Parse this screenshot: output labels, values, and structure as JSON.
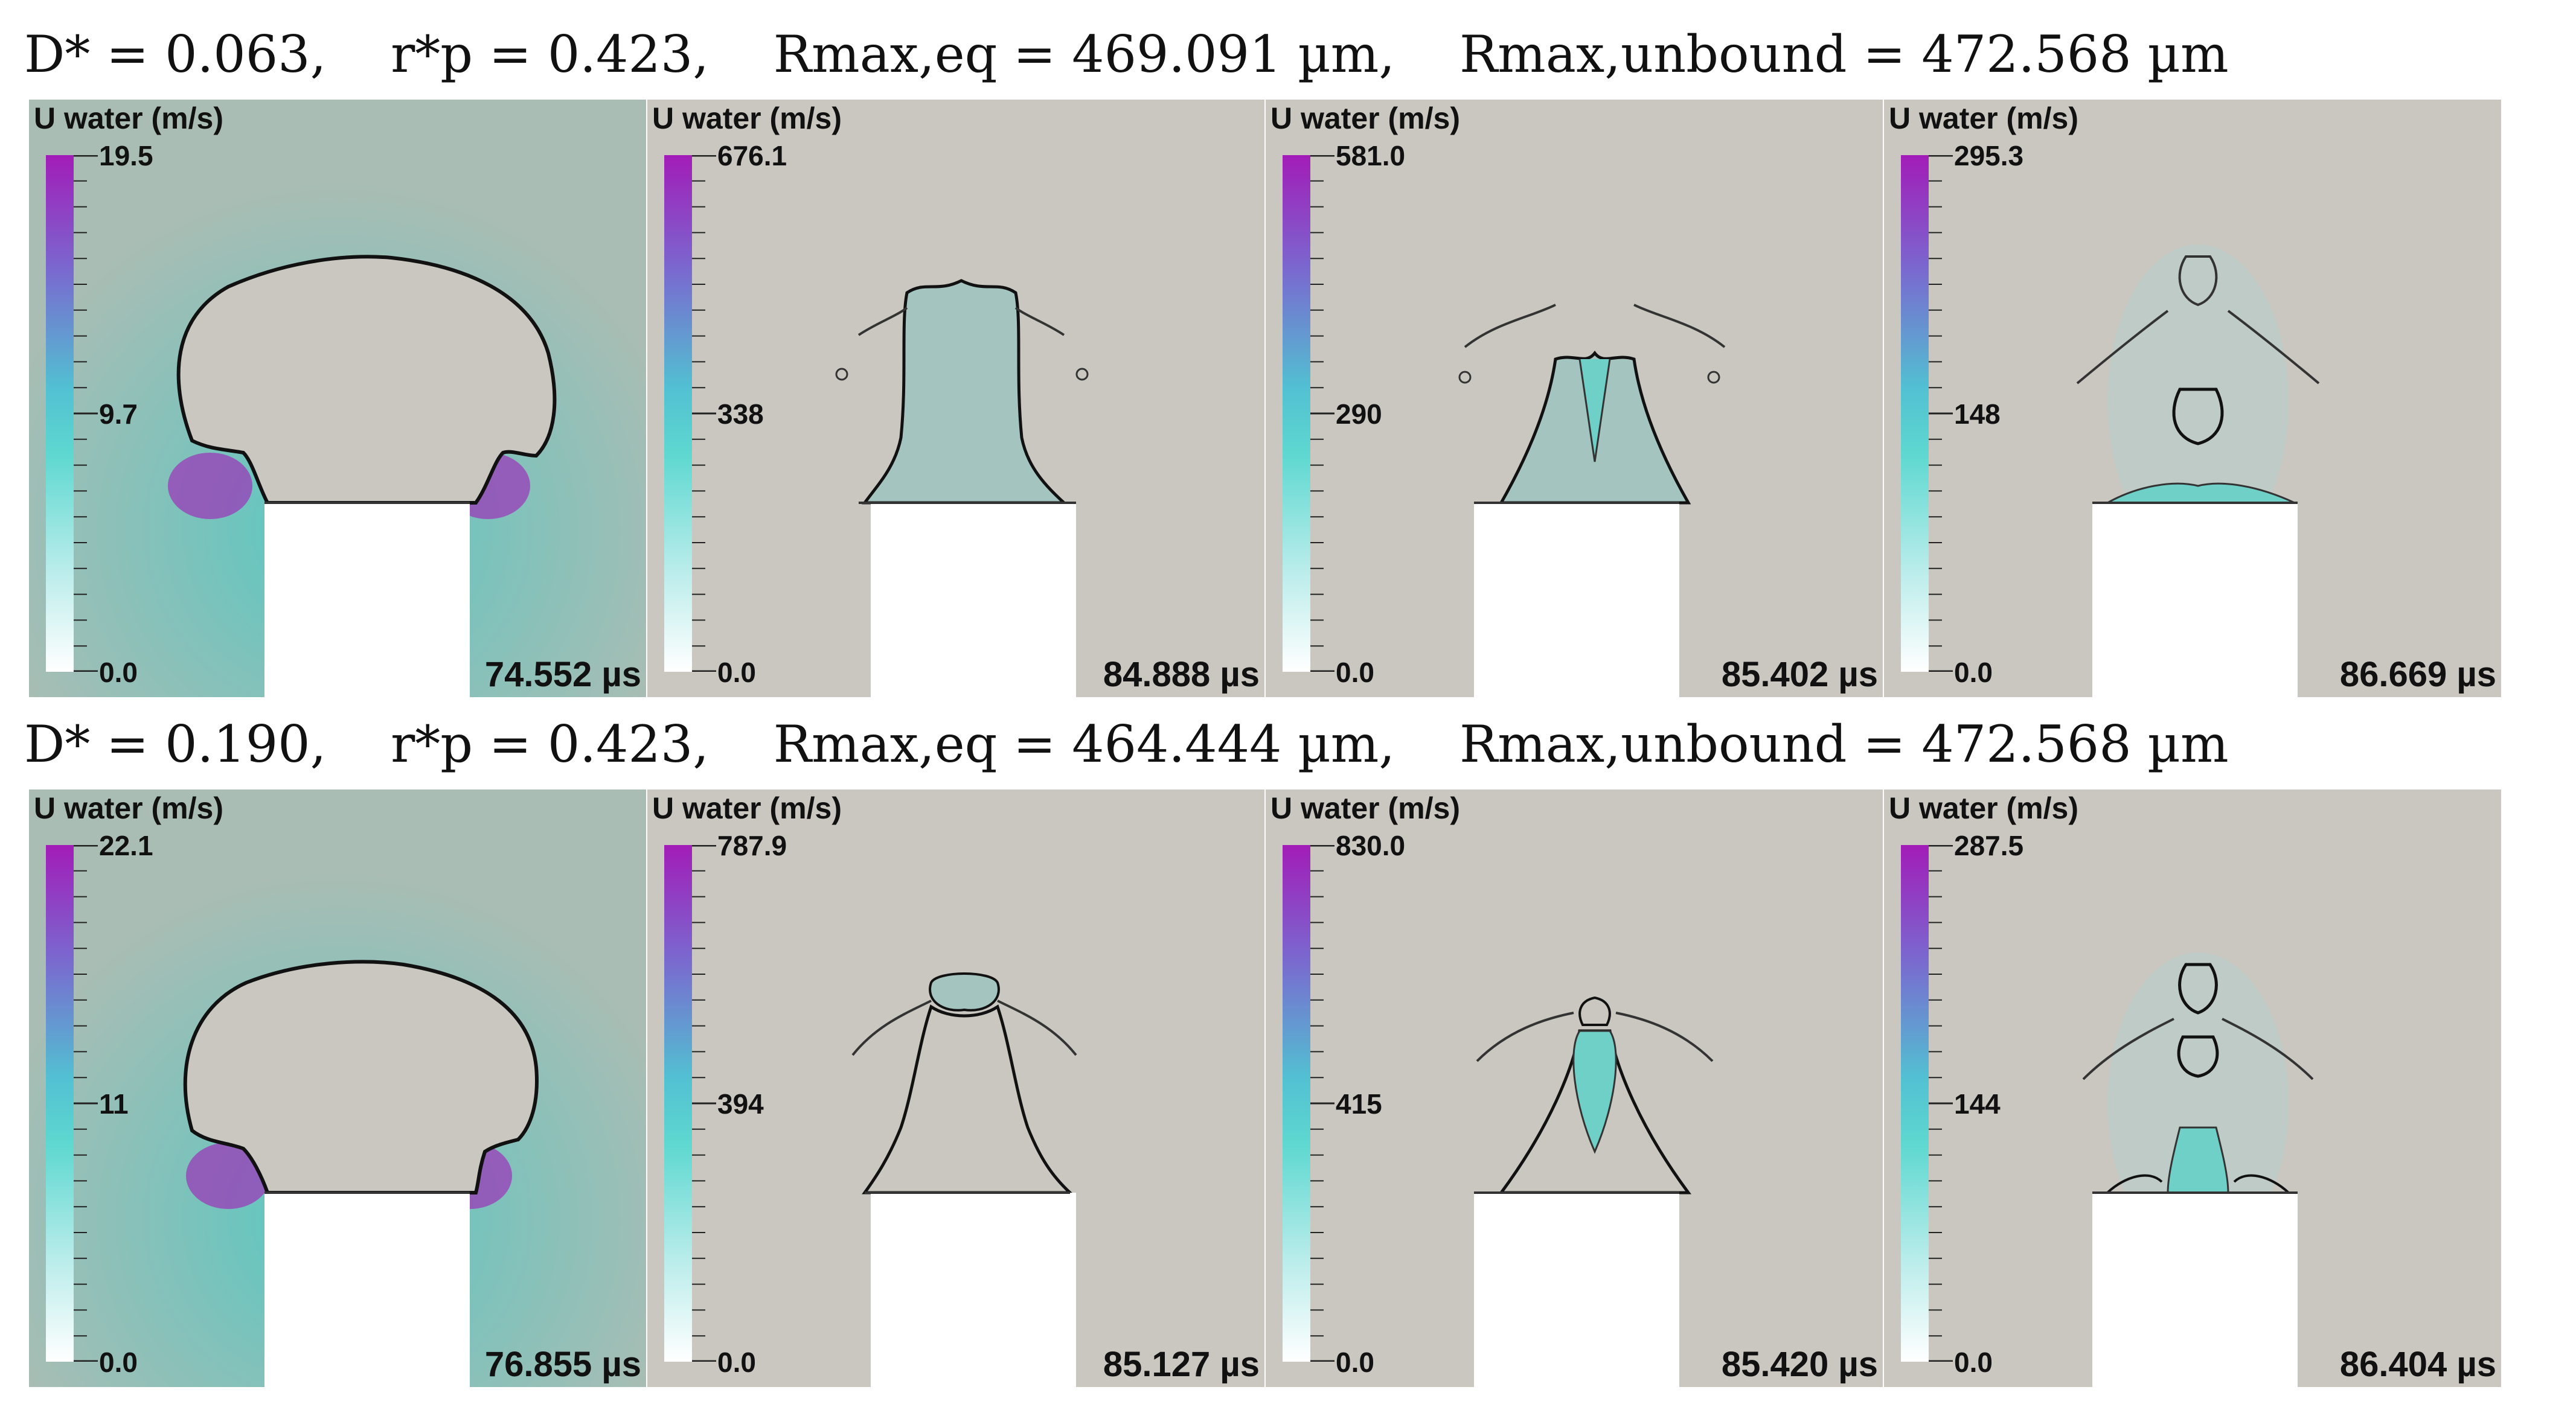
{
  "rows": [
    {
      "title": "D* = 0.063,    r*p = 0.423,    Rmax,eq = 469.091 µm,    Rmax,unbound = 472.568 µm",
      "panels": [
        {
          "colorbar_title": "U water (m/s)",
          "max": "19.5",
          "mid": "9.7",
          "min": "0.0",
          "time": "74.552 µs"
        },
        {
          "colorbar_title": "U water (m/s)",
          "max": "676.1",
          "mid": "338",
          "min": "0.0",
          "time": "84.888 µs"
        },
        {
          "colorbar_title": "U water (m/s)",
          "max": "581.0",
          "mid": "290",
          "min": "0.0",
          "time": "85.402 µs"
        },
        {
          "colorbar_title": "U water (m/s)",
          "max": "295.3",
          "mid": "148",
          "min": "0.0",
          "time": "86.669 µs"
        }
      ]
    },
    {
      "title": "D* = 0.190,    r*p = 0.423,    Rmax,eq = 464.444 µm,    Rmax,unbound = 472.568 µm",
      "panels": [
        {
          "colorbar_title": "U water (m/s)",
          "max": "22.1",
          "mid": "11",
          "min": "0.0",
          "time": "76.855 µs"
        },
        {
          "colorbar_title": "U water (m/s)",
          "max": "787.9",
          "mid": "394",
          "min": "0.0",
          "time": "85.127 µs"
        },
        {
          "colorbar_title": "U water (m/s)",
          "max": "830.0",
          "mid": "415",
          "min": "0.0",
          "time": "85.420 µs"
        },
        {
          "colorbar_title": "U water (m/s)",
          "max": "287.5",
          "mid": "144",
          "min": "0.0",
          "time": "86.404 µs"
        }
      ]
    }
  ],
  "colors": {
    "background": "#c9c7c0",
    "water_field": "#a9bdb4",
    "colormap_max": "#a21cb8",
    "colormap_mid": "#5ed8d0",
    "colormap_min": "#ffffff"
  }
}
